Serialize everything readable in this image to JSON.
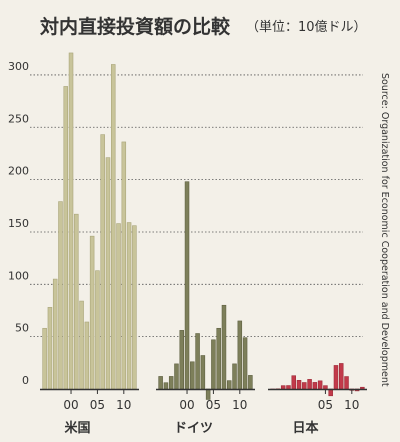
{
  "title": "対内直接投資額の比較",
  "unit": "（単位：10億ドル）",
  "source": "Source: Organization for Economic Cooperation and Development",
  "chart_data": {
    "type": "bar",
    "title": "対内直接投資額の比較",
    "subtitle": "（単位：10億ドル）",
    "ylim": [
      0,
      320
    ],
    "yticks": [
      "0",
      "50",
      "100",
      "150",
      "200",
      "250",
      "300"
    ],
    "ytick_values": [
      0,
      50,
      100,
      150,
      200,
      250,
      300
    ],
    "grid": true,
    "panels": [
      {
        "name": "米国",
        "color": "#c8c49a",
        "stroke": "#a9a57a",
        "x_labels": [
          "00",
          "05",
          "10"
        ],
        "x_label_years": [
          2000,
          2005,
          2010
        ],
        "years": [
          1995,
          1996,
          1997,
          1998,
          1999,
          2000,
          2001,
          2002,
          2003,
          2004,
          2005,
          2006,
          2007,
          2008,
          2009,
          2010,
          2011,
          2012
        ],
        "values": [
          58,
          78,
          105,
          179,
          289,
          321,
          167,
          84,
          64,
          146,
          113,
          243,
          221,
          310,
          158,
          236,
          159,
          156
        ]
      },
      {
        "name": "ドイツ",
        "color": "#7d7f5a",
        "stroke": "#5f6142",
        "x_labels": [
          "00",
          "05",
          "10"
        ],
        "x_label_years": [
          2000,
          2005,
          2010
        ],
        "years": [
          1995,
          1996,
          1997,
          1998,
          1999,
          2000,
          2001,
          2002,
          2003,
          2004,
          2005,
          2006,
          2007,
          2008,
          2009,
          2010,
          2011,
          2012
        ],
        "values": [
          12,
          6,
          12,
          24,
          56,
          198,
          26,
          53,
          32,
          -10,
          47,
          58,
          80,
          8,
          24,
          65,
          49,
          13
        ]
      },
      {
        "name": "日本",
        "color": "#c23a4a",
        "stroke": "#9e2c39",
        "x_labels": [
          "05",
          "10"
        ],
        "x_label_years": [
          2005,
          2010
        ],
        "years": [
          1995,
          1996,
          1997,
          1998,
          1999,
          2000,
          2001,
          2002,
          2003,
          2004,
          2005,
          2006,
          2007,
          2008,
          2009,
          2010,
          2011,
          2012
        ],
        "values": [
          0,
          0.2,
          3.2,
          3.3,
          12.7,
          8.3,
          6.2,
          9.2,
          6.3,
          7.8,
          3.2,
          -6.5,
          22.5,
          24.4,
          11.9,
          -1.3,
          -1.8,
          1.7
        ]
      }
    ]
  }
}
